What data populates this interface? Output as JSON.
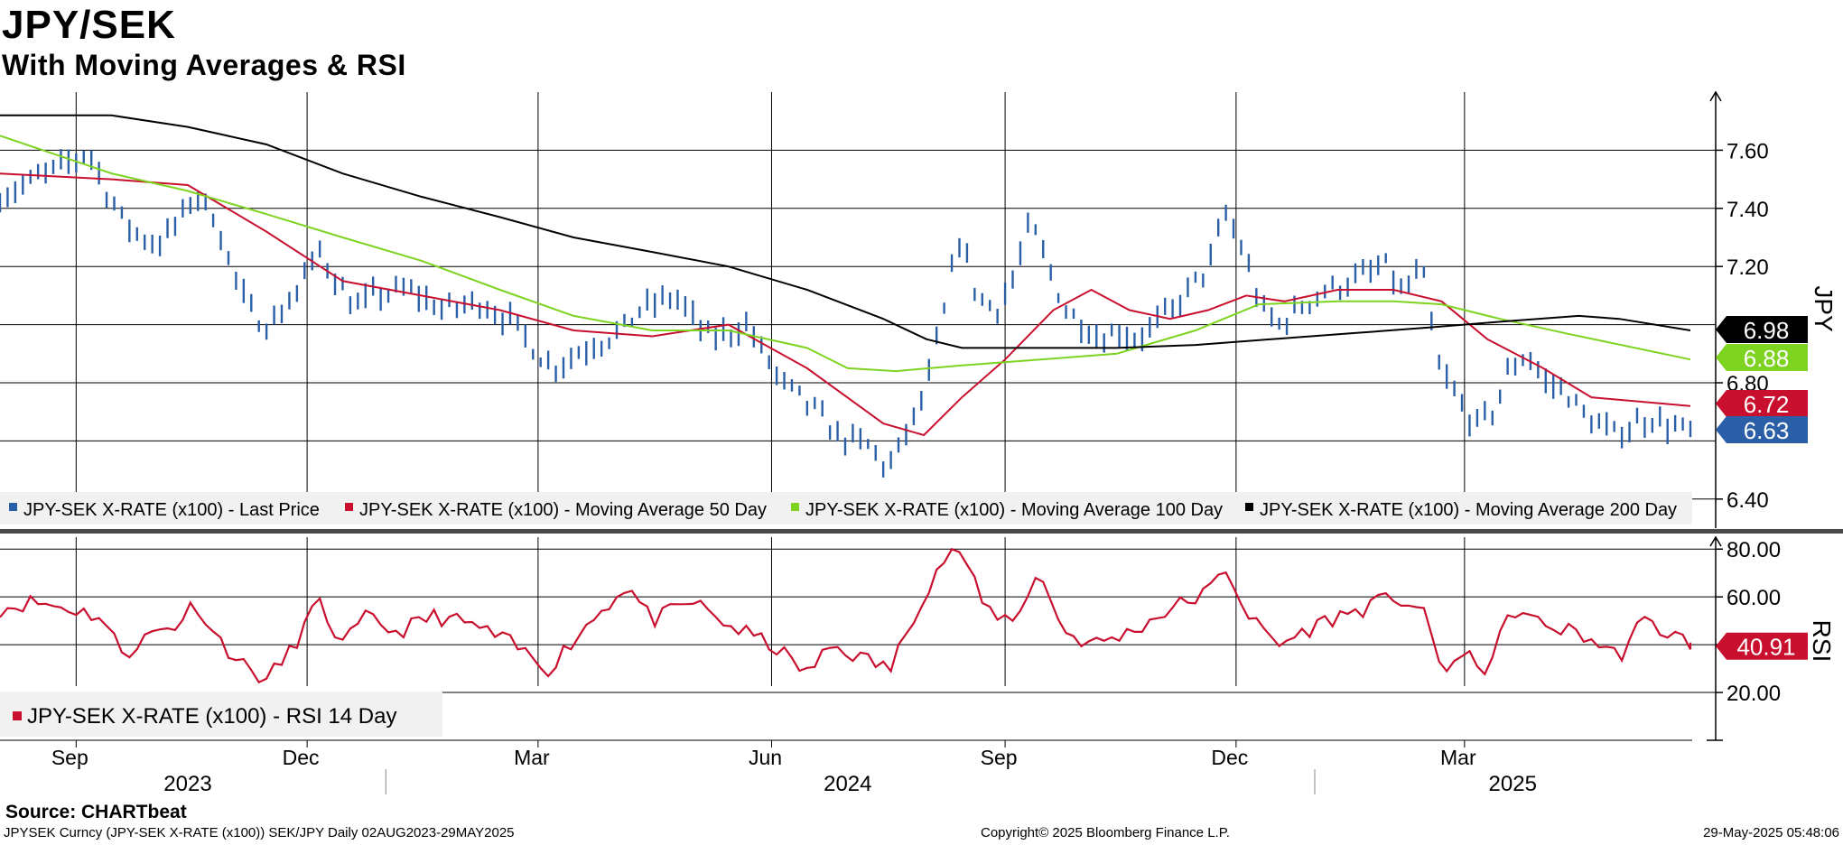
{
  "header": {
    "title": "JPY/SEK",
    "subtitle": "With Moving Averages & RSI"
  },
  "footer": {
    "source": "Source: CHARTbeat",
    "ticker_line": "JPYSEK Curncy (JPY-SEK X-RATE  (x100)) SEK/JPY  Daily 02AUG2023-29MAY2025",
    "copyright": "Copyright© 2025 Bloomberg Finance L.P.",
    "timestamp": "29-May-2025 05:48:06"
  },
  "colors": {
    "price": "#2a5fa8",
    "ma50": "#c8102e",
    "ma100": "#7ed321",
    "ma200": "#000000",
    "rsi": "#c8102e"
  },
  "chart_data": [
    {
      "type": "line",
      "panel": "price",
      "axis_label": "JPY",
      "ylim": [
        6.3,
        7.8
      ],
      "yticks": [
        7.6,
        7.4,
        7.2,
        6.8,
        6.4
      ],
      "ytick_labels": [
        "7.60",
        "7.40",
        "7.20",
        "6.80",
        "6.40"
      ],
      "xlim": [
        "2023-08-02",
        "2025-05-29"
      ],
      "month_ticks": [
        {
          "date": "2023-09-01",
          "label": "Sep"
        },
        {
          "date": "2023-12-01",
          "label": "Dec"
        },
        {
          "date": "2024-03-01",
          "label": "Mar"
        },
        {
          "date": "2024-06-01",
          "label": "Jun"
        },
        {
          "date": "2024-09-01",
          "label": "Sep"
        },
        {
          "date": "2024-12-01",
          "label": "Dec"
        },
        {
          "date": "2025-03-01",
          "label": "Mar"
        }
      ],
      "years": [
        {
          "year": "2023",
          "center": "2023-10-15"
        },
        {
          "year": "2024",
          "center": "2024-07-01"
        },
        {
          "year": "2025",
          "center": "2025-03-20"
        }
      ],
      "year_boundaries": [
        "2024-01-01",
        "2025-01-01"
      ],
      "grid": true,
      "legend_position": "bottom",
      "series": [
        {
          "name": "JPY-SEK X-RATE (x100) - Last Price",
          "style": "hlc-bars",
          "last_label": "6.63",
          "points": [
            [
              "2023-08-02",
              7.44
            ],
            [
              "2023-08-16",
              7.5
            ],
            [
              "2023-08-30",
              7.56
            ],
            [
              "2023-09-06",
              7.6
            ],
            [
              "2023-09-13",
              7.46
            ],
            [
              "2023-09-20",
              7.35
            ],
            [
              "2023-09-27",
              7.3
            ],
            [
              "2023-10-04",
              7.28
            ],
            [
              "2023-10-11",
              7.35
            ],
            [
              "2023-10-18",
              7.45
            ],
            [
              "2023-10-25",
              7.38
            ],
            [
              "2023-11-01",
              7.2
            ],
            [
              "2023-11-08",
              7.05
            ],
            [
              "2023-11-15",
              7.0
            ],
            [
              "2023-11-22",
              7.05
            ],
            [
              "2023-11-29",
              7.15
            ],
            [
              "2023-12-06",
              7.25
            ],
            [
              "2023-12-13",
              7.15
            ],
            [
              "2023-12-20",
              7.05
            ],
            [
              "2023-12-27",
              7.1
            ],
            [
              "2024-01-10",
              7.12
            ],
            [
              "2024-01-24",
              7.05
            ],
            [
              "2024-02-07",
              7.08
            ],
            [
              "2024-02-21",
              7.0
            ],
            [
              "2024-03-06",
              6.85
            ],
            [
              "2024-03-20",
              6.92
            ],
            [
              "2024-04-03",
              6.98
            ],
            [
              "2024-04-10",
              7.05
            ],
            [
              "2024-04-24",
              7.1
            ],
            [
              "2024-05-01",
              7.02
            ],
            [
              "2024-05-08",
              6.95
            ],
            [
              "2024-05-22",
              7.0
            ],
            [
              "2024-06-05",
              6.8
            ],
            [
              "2024-06-19",
              6.7
            ],
            [
              "2024-06-26",
              6.62
            ],
            [
              "2024-07-10",
              6.58
            ],
            [
              "2024-07-17",
              6.5
            ],
            [
              "2024-07-31",
              6.75
            ],
            [
              "2024-08-07",
              7.0
            ],
            [
              "2024-08-14",
              7.3
            ],
            [
              "2024-08-21",
              7.1
            ],
            [
              "2024-08-28",
              7.05
            ],
            [
              "2024-09-04",
              7.15
            ],
            [
              "2024-09-11",
              7.35
            ],
            [
              "2024-09-18",
              7.2
            ],
            [
              "2024-09-25",
              7.05
            ],
            [
              "2024-10-02",
              7.0
            ],
            [
              "2024-10-09",
              6.95
            ],
            [
              "2024-10-16",
              6.98
            ],
            [
              "2024-10-23",
              6.95
            ],
            [
              "2024-11-06",
              7.05
            ],
            [
              "2024-11-20",
              7.2
            ],
            [
              "2024-11-27",
              7.38
            ],
            [
              "2024-12-04",
              7.25
            ],
            [
              "2024-12-11",
              7.05
            ],
            [
              "2024-12-18",
              7.0
            ],
            [
              "2025-01-01",
              7.1
            ],
            [
              "2025-01-15",
              7.15
            ],
            [
              "2025-01-29",
              7.2
            ],
            [
              "2025-02-05",
              7.1
            ],
            [
              "2025-02-12",
              7.2
            ],
            [
              "2025-02-19",
              6.85
            ],
            [
              "2025-02-26",
              6.75
            ],
            [
              "2025-03-05",
              6.65
            ],
            [
              "2025-03-12",
              6.7
            ],
            [
              "2025-03-19",
              6.85
            ],
            [
              "2025-03-26",
              6.9
            ],
            [
              "2025-04-02",
              6.8
            ],
            [
              "2025-04-09",
              6.78
            ],
            [
              "2025-04-16",
              6.7
            ],
            [
              "2025-04-23",
              6.65
            ],
            [
              "2025-04-30",
              6.62
            ],
            [
              "2025-05-07",
              6.66
            ],
            [
              "2025-05-14",
              6.68
            ],
            [
              "2025-05-21",
              6.65
            ],
            [
              "2025-05-29",
              6.63
            ]
          ]
        },
        {
          "name": "JPY-SEK X-RATE (x100) - Moving Average 50 Day",
          "style": "line",
          "last_label": "6.72",
          "points": [
            [
              "2023-08-02",
              7.52
            ],
            [
              "2023-09-15",
              7.5
            ],
            [
              "2023-10-15",
              7.48
            ],
            [
              "2023-11-15",
              7.32
            ],
            [
              "2023-12-15",
              7.15
            ],
            [
              "2024-01-15",
              7.1
            ],
            [
              "2024-02-15",
              7.05
            ],
            [
              "2024-03-15",
              6.98
            ],
            [
              "2024-04-15",
              6.96
            ],
            [
              "2024-05-15",
              7.0
            ],
            [
              "2024-06-15",
              6.85
            ],
            [
              "2024-07-15",
              6.66
            ],
            [
              "2024-07-31",
              6.62
            ],
            [
              "2024-08-15",
              6.75
            ],
            [
              "2024-09-01",
              6.88
            ],
            [
              "2024-09-20",
              7.05
            ],
            [
              "2024-10-05",
              7.12
            ],
            [
              "2024-10-20",
              7.05
            ],
            [
              "2024-11-05",
              7.02
            ],
            [
              "2024-11-20",
              7.05
            ],
            [
              "2024-12-05",
              7.1
            ],
            [
              "2024-12-20",
              7.08
            ],
            [
              "2025-01-10",
              7.12
            ],
            [
              "2025-02-01",
              7.12
            ],
            [
              "2025-02-20",
              7.08
            ],
            [
              "2025-03-10",
              6.95
            ],
            [
              "2025-04-01",
              6.85
            ],
            [
              "2025-04-20",
              6.75
            ],
            [
              "2025-05-29",
              6.72
            ]
          ]
        },
        {
          "name": "JPY-SEK X-RATE (x100) - Moving Average 100 Day",
          "style": "line",
          "last_label": "6.88",
          "points": [
            [
              "2023-08-02",
              7.65
            ],
            [
              "2023-09-15",
              7.52
            ],
            [
              "2023-10-15",
              7.46
            ],
            [
              "2023-11-15",
              7.38
            ],
            [
              "2023-12-15",
              7.3
            ],
            [
              "2024-01-15",
              7.22
            ],
            [
              "2024-02-15",
              7.12
            ],
            [
              "2024-03-15",
              7.03
            ],
            [
              "2024-04-15",
              6.98
            ],
            [
              "2024-05-15",
              6.98
            ],
            [
              "2024-06-15",
              6.92
            ],
            [
              "2024-07-01",
              6.85
            ],
            [
              "2024-07-20",
              6.84
            ],
            [
              "2024-08-15",
              6.86
            ],
            [
              "2024-09-15",
              6.88
            ],
            [
              "2024-10-15",
              6.9
            ],
            [
              "2024-11-15",
              6.98
            ],
            [
              "2024-12-10",
              7.07
            ],
            [
              "2025-01-10",
              7.08
            ],
            [
              "2025-02-01",
              7.08
            ],
            [
              "2025-02-20",
              7.07
            ],
            [
              "2025-03-15",
              7.02
            ],
            [
              "2025-04-10",
              6.97
            ],
            [
              "2025-05-29",
              6.88
            ]
          ]
        },
        {
          "name": "JPY-SEK X-RATE (x100) - Moving Average 200 Day",
          "style": "line",
          "last_label": "6.98",
          "points": [
            [
              "2023-08-02",
              7.72
            ],
            [
              "2023-09-15",
              7.72
            ],
            [
              "2023-10-15",
              7.68
            ],
            [
              "2023-11-15",
              7.62
            ],
            [
              "2023-12-15",
              7.52
            ],
            [
              "2024-01-15",
              7.44
            ],
            [
              "2024-02-15",
              7.37
            ],
            [
              "2024-03-15",
              7.3
            ],
            [
              "2024-04-15",
              7.25
            ],
            [
              "2024-05-15",
              7.2
            ],
            [
              "2024-06-15",
              7.12
            ],
            [
              "2024-07-15",
              7.02
            ],
            [
              "2024-08-01",
              6.95
            ],
            [
              "2024-08-15",
              6.92
            ],
            [
              "2024-09-15",
              6.92
            ],
            [
              "2024-10-15",
              6.92
            ],
            [
              "2024-11-15",
              6.93
            ],
            [
              "2024-12-15",
              6.95
            ],
            [
              "2025-01-15",
              6.97
            ],
            [
              "2025-02-15",
              6.99
            ],
            [
              "2025-03-15",
              7.01
            ],
            [
              "2025-04-15",
              7.03
            ],
            [
              "2025-05-01",
              7.02
            ],
            [
              "2025-05-29",
              6.98
            ]
          ]
        }
      ]
    },
    {
      "type": "line",
      "panel": "rsi",
      "axis_label": "RSI",
      "ylim": [
        0,
        85
      ],
      "yticks": [
        80,
        60,
        40,
        20
      ],
      "ytick_labels": [
        "80.00",
        "60.00",
        "40.00",
        "20.00"
      ],
      "xlim": [
        "2023-08-02",
        "2025-05-29"
      ],
      "grid": true,
      "legend_position": "bottom-left",
      "series": [
        {
          "name": "JPY-SEK X-RATE (x100) - RSI 14 Day",
          "last_label": "40.91",
          "points": [
            [
              "2023-08-02",
              55
            ],
            [
              "2023-08-15",
              58
            ],
            [
              "2023-08-30",
              55
            ],
            [
              "2023-09-10",
              52
            ],
            [
              "2023-09-20",
              36
            ],
            [
              "2023-10-01",
              45
            ],
            [
              "2023-10-10",
              48
            ],
            [
              "2023-10-18",
              58
            ],
            [
              "2023-10-25",
              45
            ],
            [
              "2023-11-05",
              32
            ],
            [
              "2023-11-15",
              25
            ],
            [
              "2023-11-25",
              38
            ],
            [
              "2023-12-05",
              58
            ],
            [
              "2023-12-15",
              40
            ],
            [
              "2023-12-25",
              52
            ],
            [
              "2024-01-05",
              45
            ],
            [
              "2024-01-20",
              52
            ],
            [
              "2024-02-05",
              48
            ],
            [
              "2024-02-20",
              40
            ],
            [
              "2024-03-05",
              30
            ],
            [
              "2024-03-20",
              48
            ],
            [
              "2024-04-05",
              65
            ],
            [
              "2024-04-15",
              50
            ],
            [
              "2024-05-01",
              58
            ],
            [
              "2024-05-15",
              48
            ],
            [
              "2024-06-01",
              40
            ],
            [
              "2024-06-15",
              28
            ],
            [
              "2024-06-25",
              40
            ],
            [
              "2024-07-05",
              35
            ],
            [
              "2024-07-18",
              30
            ],
            [
              "2024-07-28",
              55
            ],
            [
              "2024-08-07",
              75
            ],
            [
              "2024-08-14",
              80
            ],
            [
              "2024-08-24",
              55
            ],
            [
              "2024-09-04",
              50
            ],
            [
              "2024-09-14",
              70
            ],
            [
              "2024-09-25",
              45
            ],
            [
              "2024-10-05",
              40
            ],
            [
              "2024-10-20",
              45
            ],
            [
              "2024-11-05",
              55
            ],
            [
              "2024-11-20",
              62
            ],
            [
              "2024-11-27",
              72
            ],
            [
              "2024-12-07",
              50
            ],
            [
              "2024-12-18",
              40
            ],
            [
              "2025-01-05",
              50
            ],
            [
              "2025-01-20",
              55
            ],
            [
              "2025-02-01",
              60
            ],
            [
              "2025-02-12",
              55
            ],
            [
              "2025-02-20",
              30
            ],
            [
              "2025-03-01",
              35
            ],
            [
              "2025-03-10",
              30
            ],
            [
              "2025-03-20",
              55
            ],
            [
              "2025-04-01",
              48
            ],
            [
              "2025-04-15",
              45
            ],
            [
              "2025-05-01",
              35
            ],
            [
              "2025-05-10",
              50
            ],
            [
              "2025-05-20",
              45
            ],
            [
              "2025-05-29",
              40.91
            ]
          ]
        }
      ]
    }
  ]
}
